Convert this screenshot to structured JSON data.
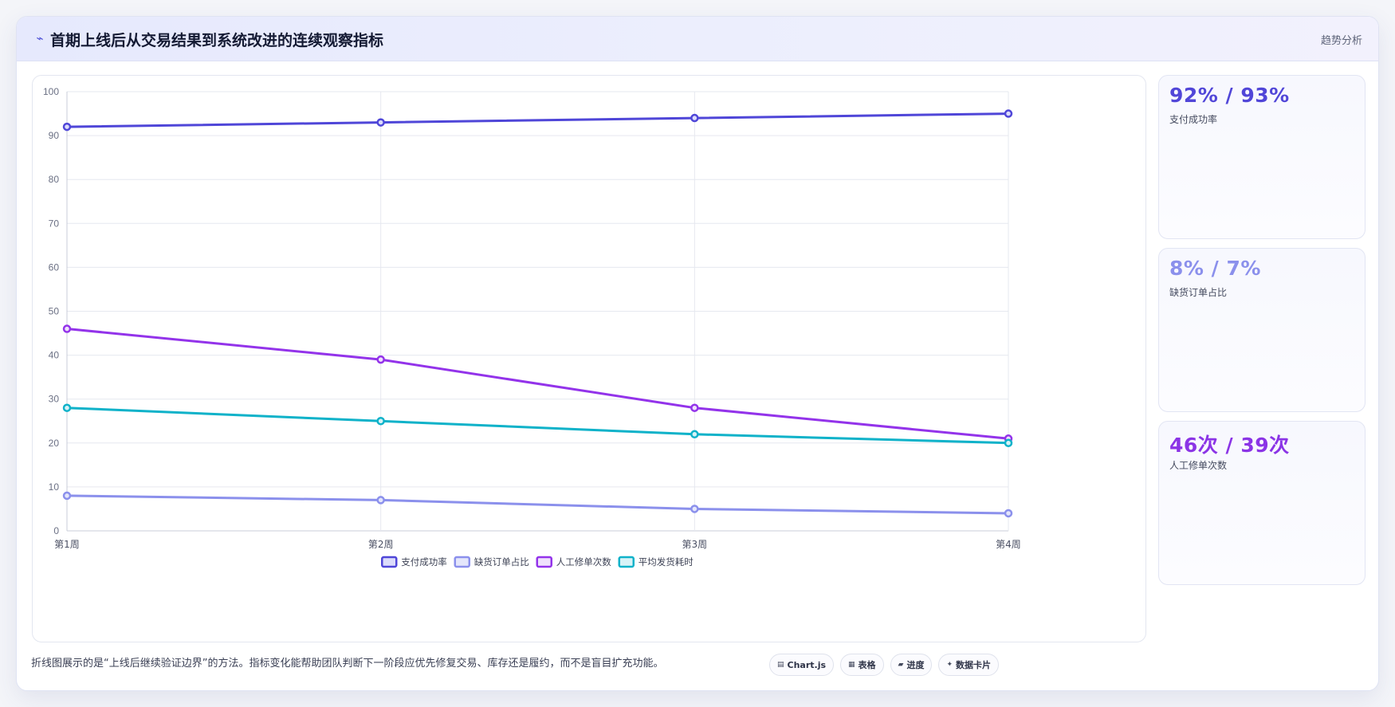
{
  "header": {
    "icon": "wave-icon",
    "title": "首期上线后从交易结果到系统改进的连续观察指标",
    "tag": "趋势分析"
  },
  "chart_data": {
    "type": "line",
    "categories": [
      "第1周",
      "第2周",
      "第3周",
      "第4周"
    ],
    "ylim": [
      0,
      100
    ],
    "yticks": [
      0,
      10,
      20,
      30,
      40,
      50,
      60,
      70,
      80,
      90,
      100
    ],
    "grid": true,
    "legend_position": "bottom",
    "series": [
      {
        "name": "支付成功率",
        "values": [
          92,
          93,
          94,
          95
        ],
        "color": "#4f46d8",
        "fill": "#dcdcfb"
      },
      {
        "name": "缺货订单占比",
        "values": [
          8,
          7,
          5,
          4
        ],
        "color": "#8b90ec",
        "fill": "#e4e6fb"
      },
      {
        "name": "人工修单次数",
        "values": [
          46,
          39,
          28,
          21
        ],
        "color": "#9333ea",
        "fill": "#efe1fc"
      },
      {
        "name": "平均发货耗时",
        "values": [
          28,
          25,
          22,
          20
        ],
        "color": "#0fb2c9",
        "fill": "#d8f3f7"
      }
    ]
  },
  "stats": [
    {
      "value": "92% / 93%",
      "label": "支付成功率",
      "color": "#5146d8"
    },
    {
      "value": "8% / 7%",
      "label": "缺货订单占比",
      "color": "#8b90ec"
    },
    {
      "value": "46次 / 39次",
      "label": "人工修单次数",
      "color": "#8b34e6"
    }
  ],
  "footer": {
    "note": "折线图展示的是“上线后继续验证边界”的方法。指标变化能帮助团队判断下一阶段应优先修复交易、库存还是履约，而不是盲目扩充功能。",
    "chips": [
      {
        "icon": "chart-icon",
        "glyph": "▤",
        "label": "Chart.js"
      },
      {
        "icon": "table-icon",
        "glyph": "▦",
        "label": "表格"
      },
      {
        "icon": "progress-icon",
        "glyph": "▰",
        "label": "进度"
      },
      {
        "icon": "sparkle-icon",
        "glyph": "✦",
        "label": "数据卡片"
      }
    ]
  }
}
